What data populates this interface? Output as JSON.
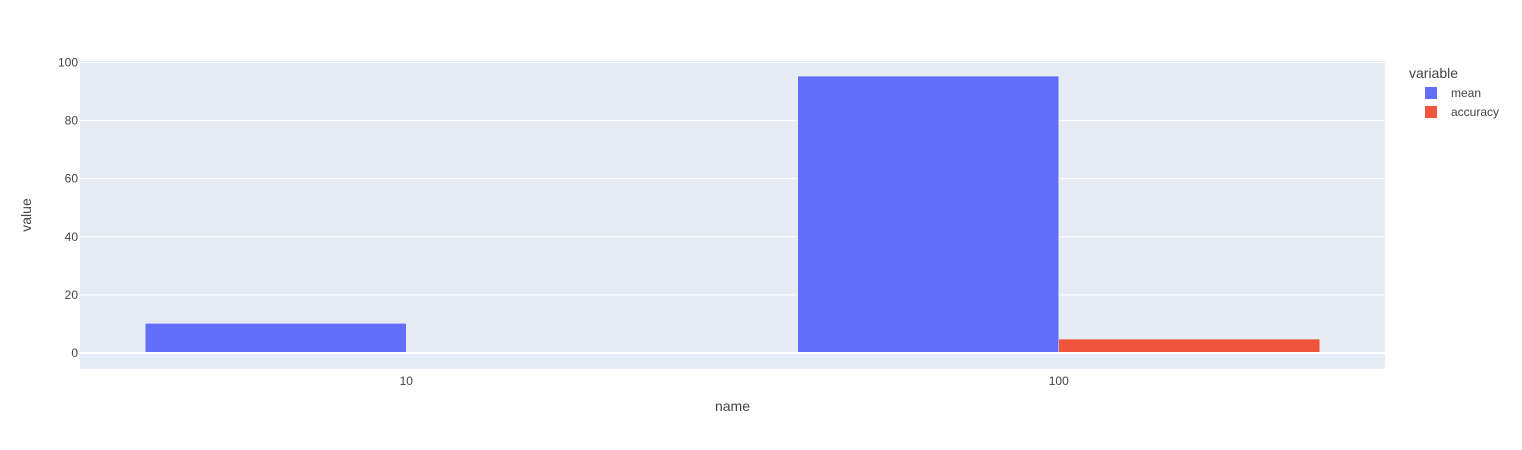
{
  "chart_data": {
    "type": "bar",
    "categories": [
      "10",
      "100"
    ],
    "series": [
      {
        "name": "mean",
        "values": [
          10.2,
          95.3
        ],
        "color": "#636efa"
      },
      {
        "name": "accuracy",
        "values": [
          0.2,
          4.8
        ],
        "color": "#ef553b"
      }
    ],
    "xlabel": "name",
    "ylabel": "value",
    "ylim": [
      -5.5,
      100.5
    ],
    "yticks": [
      0,
      20,
      40,
      60,
      80,
      100
    ],
    "legend_title": "variable",
    "legend_position": "top-right",
    "grid": true,
    "plot_background": "#e5ecf6"
  }
}
